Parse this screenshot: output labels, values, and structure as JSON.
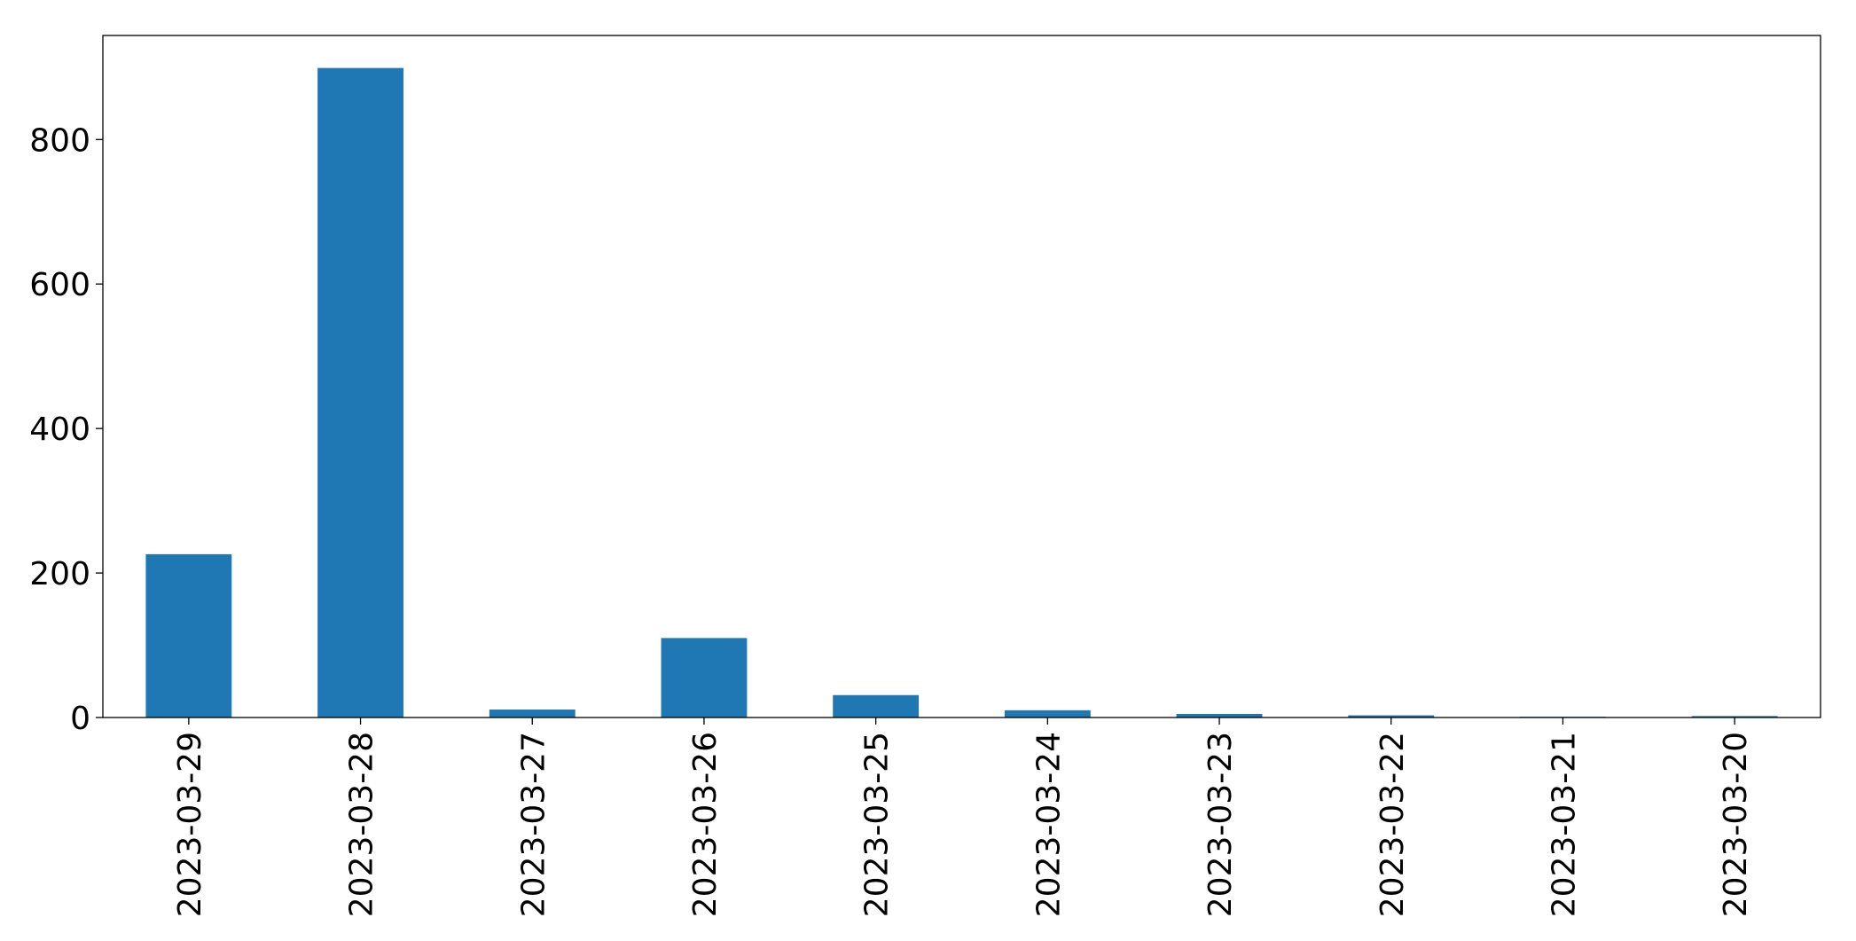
{
  "chart_data": {
    "type": "bar",
    "categories": [
      "2023-03-29",
      "2023-03-28",
      "2023-03-27",
      "2023-03-26",
      "2023-03-25",
      "2023-03-24",
      "2023-03-23",
      "2023-03-22",
      "2023-03-21",
      "2023-03-20"
    ],
    "values": [
      226,
      899,
      11,
      110,
      31,
      10,
      5,
      3,
      1,
      2
    ],
    "color": "#1f77b4",
    "ylim": [
      0,
      944
    ],
    "yticks": [
      0,
      200,
      400,
      600,
      800
    ],
    "grid": false
  }
}
